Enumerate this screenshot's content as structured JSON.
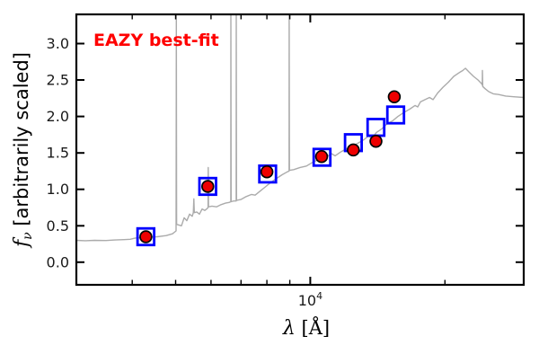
{
  "figure": {
    "background": "#ffffff",
    "axis_color": "#000000",
    "tick_label_color": "#1a1a1a"
  },
  "chart_data": {
    "type": "line+scatter",
    "title": "",
    "annotation": "EAZY best-fit",
    "annotation_color": "#ff0000",
    "xlabel_symbol": "λ",
    "xlabel_unit": " [Å]",
    "ylabel_symbol": "f",
    "ylabel_sub": "ν",
    "ylabel_rest": " [arbitrarily scaled]",
    "x_scale": "log",
    "xlim": [
      3000,
      30000
    ],
    "ylim": [
      -0.31,
      3.4
    ],
    "x_major_ticks": [
      {
        "value": 10000,
        "label_base": "10",
        "label_exp": "4"
      }
    ],
    "x_minor_ticks": [
      4000,
      5000,
      6000,
      7000,
      8000,
      9000,
      20000
    ],
    "y_major_ticks": [
      {
        "value": 0.0,
        "label": "0.0"
      },
      {
        "value": 0.5,
        "label": "0.5"
      },
      {
        "value": 1.0,
        "label": "1.0"
      },
      {
        "value": 1.5,
        "label": "1.5"
      },
      {
        "value": 2.0,
        "label": "2.0"
      },
      {
        "value": 2.5,
        "label": "2.5"
      },
      {
        "value": 3.0,
        "label": "3.0"
      }
    ],
    "grid": false,
    "legend": "none",
    "series": [
      {
        "name": "eazy-template-spectrum",
        "type": "line",
        "color": "#ababab",
        "line_width": 1.4,
        "points": [
          [
            3000,
            0.3
          ],
          [
            3142,
            0.295
          ],
          [
            3291,
            0.3
          ],
          [
            3494,
            0.298
          ],
          [
            3660,
            0.305
          ],
          [
            3833,
            0.31
          ],
          [
            3959,
            0.315
          ],
          [
            4052,
            0.33
          ],
          [
            4205,
            0.34
          ],
          [
            4363,
            0.345
          ],
          [
            4549,
            0.35
          ],
          [
            4764,
            0.365
          ],
          [
            4921,
            0.39
          ],
          [
            5013,
            0.43
          ],
          [
            5018,
            3.4
          ],
          [
            5025,
            0.52
          ],
          [
            5154,
            0.5
          ],
          [
            5226,
            0.61
          ],
          [
            5299,
            0.57
          ],
          [
            5373,
            0.66
          ],
          [
            5448,
            0.63
          ],
          [
            5478,
            0.68
          ],
          [
            5492,
            0.87
          ],
          [
            5506,
            0.68
          ],
          [
            5575,
            0.69
          ],
          [
            5653,
            0.66
          ],
          [
            5731,
            0.73
          ],
          [
            5811,
            0.71
          ],
          [
            5892,
            0.74
          ],
          [
            5910,
            0.75
          ],
          [
            5913,
            1.3
          ],
          [
            5922,
            0.76
          ],
          [
            6030,
            0.77
          ],
          [
            6171,
            0.76
          ],
          [
            6315,
            0.79
          ],
          [
            6463,
            0.81
          ],
          [
            6584,
            0.82
          ],
          [
            6643,
            0.83
          ],
          [
            6645,
            3.4
          ],
          [
            6655,
            0.83
          ],
          [
            6738,
            0.84
          ],
          [
            6830,
            0.84
          ],
          [
            6832,
            3.4
          ],
          [
            6842,
            0.85
          ],
          [
            6991,
            0.86
          ],
          [
            7188,
            0.9
          ],
          [
            7390,
            0.93
          ],
          [
            7529,
            0.92
          ],
          [
            7740,
            0.98
          ],
          [
            7957,
            1.04
          ],
          [
            8181,
            1.1
          ],
          [
            8411,
            1.15
          ],
          [
            8647,
            1.2
          ],
          [
            8890,
            1.24
          ],
          [
            8968,
            1.25
          ],
          [
            8970,
            3.4
          ],
          [
            8982,
            1.26
          ],
          [
            9182,
            1.27
          ],
          [
            9487,
            1.3
          ],
          [
            9802,
            1.32
          ],
          [
            10122,
            1.37
          ],
          [
            10359,
            1.4
          ],
          [
            10650,
            1.44
          ],
          [
            10899,
            1.45
          ],
          [
            11154,
            1.49
          ],
          [
            11363,
            1.46
          ],
          [
            11682,
            1.51
          ],
          [
            12069,
            1.56
          ],
          [
            12408,
            1.59
          ],
          [
            12756,
            1.63
          ],
          [
            13176,
            1.68
          ],
          [
            13485,
            1.73
          ],
          [
            13737,
            1.7
          ],
          [
            14055,
            1.78
          ],
          [
            14451,
            1.83
          ],
          [
            14856,
            1.9
          ],
          [
            15276,
            1.94
          ],
          [
            15707,
            2.0
          ],
          [
            16149,
            2.05
          ],
          [
            16680,
            2.1
          ],
          [
            17148,
            2.15
          ],
          [
            17388,
            2.13
          ],
          [
            17631,
            2.2
          ],
          [
            18045,
            2.23
          ],
          [
            18468,
            2.26
          ],
          [
            18813,
            2.23
          ],
          [
            19254,
            2.32
          ],
          [
            19797,
            2.4
          ],
          [
            20352,
            2.47
          ],
          [
            20928,
            2.55
          ],
          [
            21516,
            2.6
          ],
          [
            21918,
            2.63
          ],
          [
            22224,
            2.66
          ],
          [
            22638,
            2.61
          ],
          [
            23166,
            2.55
          ],
          [
            23706,
            2.5
          ],
          [
            24150,
            2.45
          ],
          [
            24240,
            2.43
          ],
          [
            24255,
            2.63
          ],
          [
            24300,
            2.41
          ],
          [
            24600,
            2.38
          ],
          [
            25059,
            2.34
          ],
          [
            25644,
            2.31
          ],
          [
            26364,
            2.3
          ],
          [
            27348,
            2.28
          ],
          [
            28509,
            2.27
          ],
          [
            30000,
            2.26
          ]
        ]
      },
      {
        "name": "model-photometry",
        "type": "scatter",
        "marker": "open-square",
        "color": "#0000ff",
        "marker_size": 18.5,
        "stroke_width": 2.8,
        "points": [
          [
            4290,
            0.35
          ],
          [
            5900,
            1.04
          ],
          [
            8030,
            1.21
          ],
          [
            10620,
            1.44
          ],
          [
            12480,
            1.64
          ],
          [
            14020,
            1.85
          ],
          [
            15520,
            2.02
          ]
        ]
      },
      {
        "name": "observed-photometry",
        "type": "scatter",
        "marker": "filled-circle",
        "fill": "#ee0000",
        "edge": "#000000",
        "radius": 6.4,
        "edge_width": 1.7,
        "points": [
          [
            4290,
            0.35
          ],
          [
            5900,
            1.04
          ],
          [
            8000,
            1.24
          ],
          [
            10600,
            1.45
          ],
          [
            12480,
            1.54
          ],
          [
            14020,
            1.66
          ],
          [
            15410,
            2.27
          ]
        ]
      }
    ]
  }
}
